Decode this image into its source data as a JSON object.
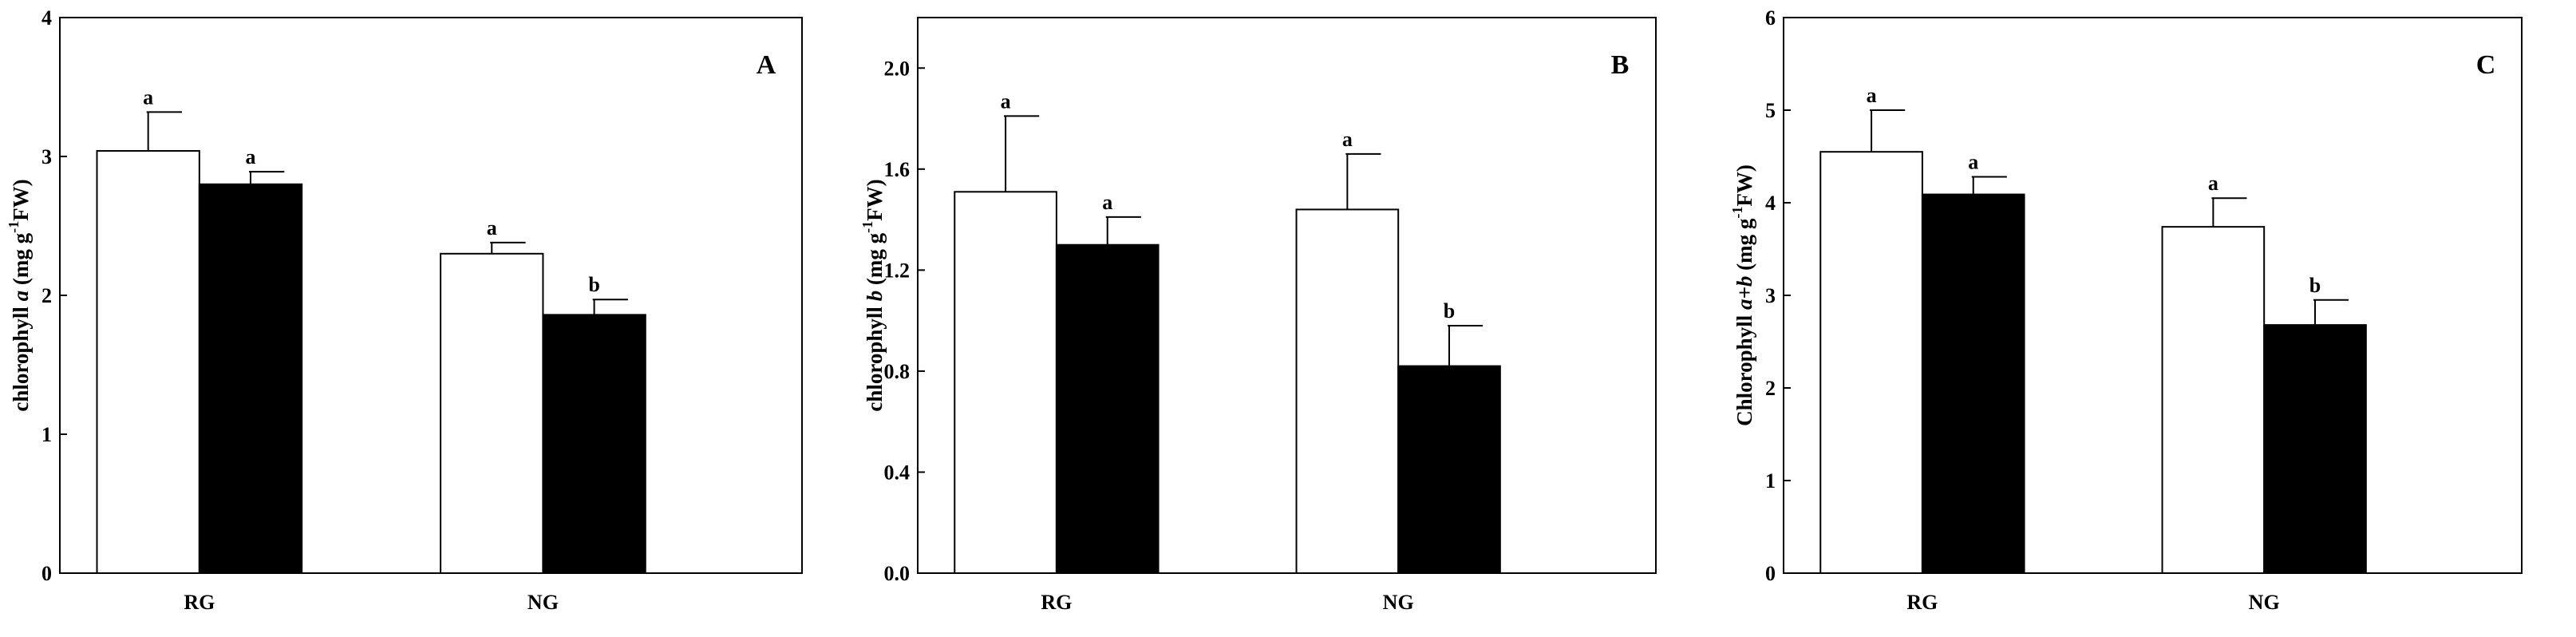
{
  "chart_data": [
    {
      "type": "bar",
      "panel_label": "A",
      "categories": [
        "RG",
        "NG"
      ],
      "ylabel": {
        "prefix": "chlorophyll ",
        "italic": "a",
        "unit_start": "  (mg g",
        "sup": "-1",
        "unit_end": "FW)"
      },
      "ylim": [
        0,
        4
      ],
      "yticks": [
        0,
        1,
        2,
        3,
        4
      ],
      "yticklabels": [
        "0",
        "1",
        "2",
        "3",
        "4"
      ],
      "series": [
        {
          "fill": "#ffffff",
          "values": [
            3.04,
            2.3
          ],
          "errors": [
            0.28,
            0.08
          ],
          "sig": [
            "a",
            "a"
          ]
        },
        {
          "fill": "#000000",
          "values": [
            2.8,
            1.86
          ],
          "errors": [
            0.09,
            0.11
          ],
          "sig": [
            "a",
            "b"
          ]
        }
      ]
    },
    {
      "type": "bar",
      "panel_label": "B",
      "categories": [
        "RG",
        "NG"
      ],
      "ylabel": {
        "prefix": "chlorophyll ",
        "italic": "b",
        "unit_start": " (mg g",
        "sup": "-1",
        "unit_end": "FW)"
      },
      "ylim": [
        0,
        2.2
      ],
      "yticks": [
        0,
        0.4,
        0.8,
        1.2,
        1.6,
        2.0
      ],
      "yticklabels": [
        "0.0",
        "0.4",
        "0.8",
        "1.2",
        "1.6",
        "2.0"
      ],
      "series": [
        {
          "fill": "#ffffff",
          "values": [
            1.51,
            1.44
          ],
          "errors": [
            0.3,
            0.22
          ],
          "sig": [
            "a",
            "a"
          ]
        },
        {
          "fill": "#000000",
          "values": [
            1.3,
            0.82
          ],
          "errors": [
            0.11,
            0.16
          ],
          "sig": [
            "a",
            "b"
          ]
        }
      ]
    },
    {
      "type": "bar",
      "panel_label": "C",
      "categories": [
        "RG",
        "NG"
      ],
      "ylabel": {
        "prefix": "Chlorophyll ",
        "italic": "a+b",
        "unit_start": " (mg g",
        "sup": "-1",
        "unit_end": "FW)"
      },
      "ylim": [
        0,
        6
      ],
      "yticks": [
        0,
        1,
        2,
        3,
        4,
        5,
        6
      ],
      "yticklabels": [
        "0",
        "1",
        "2",
        "3",
        "4",
        "5",
        "6"
      ],
      "series": [
        {
          "fill": "#ffffff",
          "values": [
            4.55,
            3.74
          ],
          "errors": [
            0.45,
            0.31
          ],
          "sig": [
            "a",
            "a"
          ]
        },
        {
          "fill": "#000000",
          "values": [
            4.09,
            2.68
          ],
          "errors": [
            0.19,
            0.27
          ],
          "sig": [
            "a",
            "b"
          ]
        }
      ]
    }
  ]
}
